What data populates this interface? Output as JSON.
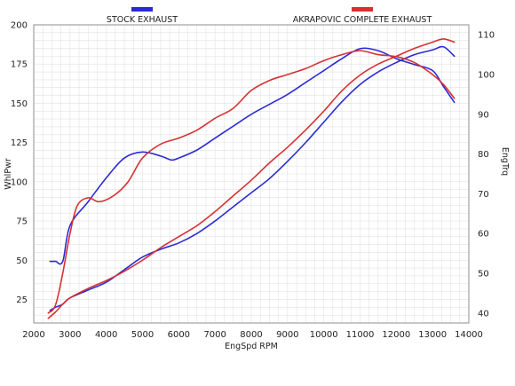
{
  "chart_data": {
    "type": "line",
    "xlabel": "EngSpd  RPM",
    "ylabel_left": "WhlPwr",
    "ylabel_right": "EngTrq",
    "xlim": [
      2000,
      14000
    ],
    "ylim_left": [
      10,
      200
    ],
    "ylim_right": [
      37.5,
      112.5
    ],
    "x_ticks": [
      2000,
      3000,
      4000,
      5000,
      6000,
      7000,
      8000,
      9000,
      10000,
      11000,
      12000,
      13000,
      14000
    ],
    "y_ticks_left": [
      25,
      50,
      75,
      100,
      125,
      150,
      175,
      200
    ],
    "y_ticks_right": [
      40,
      50,
      60,
      70,
      80,
      90,
      100,
      110
    ],
    "grid": true,
    "legend_position": "top",
    "legend": [
      {
        "name": "STOCK EXHAUST",
        "color": "#2b2bd6"
      },
      {
        "name": "AKRAPOVIC COMPLETE EXHAUST",
        "color": "#d93030"
      }
    ],
    "series": [
      {
        "name": "STOCK EXHAUST",
        "quantity": "power",
        "axis": "left",
        "color": "#2b2bd6",
        "x": [
          2450,
          2600,
          2800,
          3000,
          3500,
          4000,
          4500,
          5000,
          5500,
          6000,
          6500,
          7000,
          7500,
          8000,
          8500,
          9000,
          9500,
          10000,
          10500,
          11000,
          11500,
          12000,
          12500,
          13000,
          13300,
          13600
        ],
        "y": [
          18,
          20,
          22,
          26,
          31,
          36,
          44,
          52,
          57,
          61,
          67,
          75,
          84,
          93,
          102,
          113,
          125,
          138,
          151,
          162,
          170,
          176,
          181,
          184,
          186,
          180
        ]
      },
      {
        "name": "STOCK EXHAUST",
        "quantity": "torque",
        "axis": "right",
        "color": "#2b2bd6",
        "x": [
          2450,
          2600,
          2800,
          3000,
          3500,
          4000,
          4500,
          5000,
          5500,
          5800,
          6000,
          6500,
          7000,
          7500,
          8000,
          8500,
          9000,
          9500,
          10000,
          10500,
          11000,
          11500,
          12000,
          12500,
          13000,
          13300,
          13600
        ],
        "y": [
          53,
          53,
          53,
          62,
          68,
          74,
          79,
          80.5,
          79.5,
          78.5,
          79,
          81,
          84,
          87,
          90,
          92.5,
          95,
          98,
          101,
          104,
          106.5,
          106,
          104,
          102.5,
          101,
          97,
          93
        ]
      },
      {
        "name": "AKRAPOVIC COMPLETE EXHAUST",
        "quantity": "power",
        "axis": "left",
        "color": "#d93030",
        "x": [
          2400,
          2600,
          2800,
          3000,
          3500,
          4000,
          4500,
          5000,
          5500,
          6000,
          6500,
          7000,
          7500,
          8000,
          8500,
          9000,
          9500,
          10000,
          10500,
          11000,
          11500,
          12000,
          12500,
          13000,
          13300,
          13600
        ],
        "y": [
          13,
          17,
          22,
          26,
          32,
          37,
          43,
          50,
          58,
          65,
          72,
          81,
          91,
          101,
          112,
          122,
          133,
          145,
          158,
          168,
          175,
          180,
          185,
          189,
          191,
          189
        ]
      },
      {
        "name": "AKRAPOVIC COMPLETE EXHAUST",
        "quantity": "torque",
        "axis": "right",
        "color": "#d93030",
        "x": [
          2400,
          2600,
          2800,
          3000,
          3200,
          3500,
          3800,
          4200,
          4600,
          5000,
          5500,
          6000,
          6500,
          7000,
          7500,
          8000,
          8500,
          9000,
          9500,
          10000,
          10500,
          11000,
          11500,
          12000,
          12500,
          13000,
          13300,
          13600
        ],
        "y": [
          40,
          42,
          50,
          60,
          67,
          69,
          68,
          69.5,
          73,
          79,
          82.5,
          84,
          86,
          89,
          91.5,
          96,
          98.5,
          100,
          101.5,
          103.5,
          105,
          106,
          105,
          104.5,
          103,
          100,
          97.5,
          94
        ]
      }
    ]
  }
}
